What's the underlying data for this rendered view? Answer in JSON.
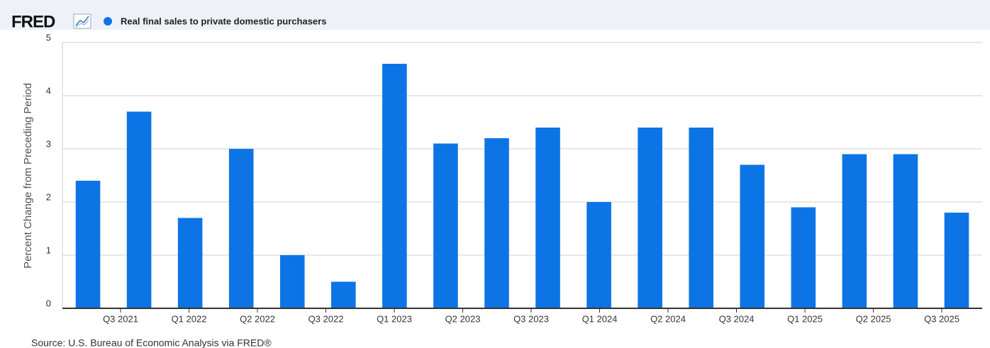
{
  "logo": "FRED",
  "source": "Source: U.S. Bureau of Economic Analysis via FRED®",
  "chart_data": {
    "type": "bar",
    "series": [
      {
        "name": "Real final sales to private domestic purchasers",
        "color": "#0d74e6",
        "values": [
          2.4,
          3.7,
          1.7,
          3.0,
          1.0,
          0.5,
          4.6,
          3.1,
          3.2,
          3.4,
          2.0,
          3.4,
          3.4,
          2.7,
          1.9,
          2.9,
          2.9,
          1.8
        ]
      }
    ],
    "categories": [
      null,
      null,
      null,
      null,
      null,
      null,
      null,
      null,
      null,
      null,
      null,
      null,
      null,
      null,
      null,
      null,
      null,
      null
    ],
    "x_labels": [
      "Q3 2021",
      "Q1 2022",
      "Q2 2022",
      "Q3 2022",
      "Q1 2023",
      "Q2 2023",
      "Q3 2023",
      "Q1 2024",
      "Q2 2024",
      "Q3 2024",
      "Q1 2025",
      "Q2 2025",
      "Q3 2025"
    ],
    "ylabel": "Percent Change from Preceding Period",
    "ylim": [
      0,
      5
    ],
    "yticks": [
      0,
      1,
      2,
      3,
      4,
      5
    ],
    "grid": true
  }
}
